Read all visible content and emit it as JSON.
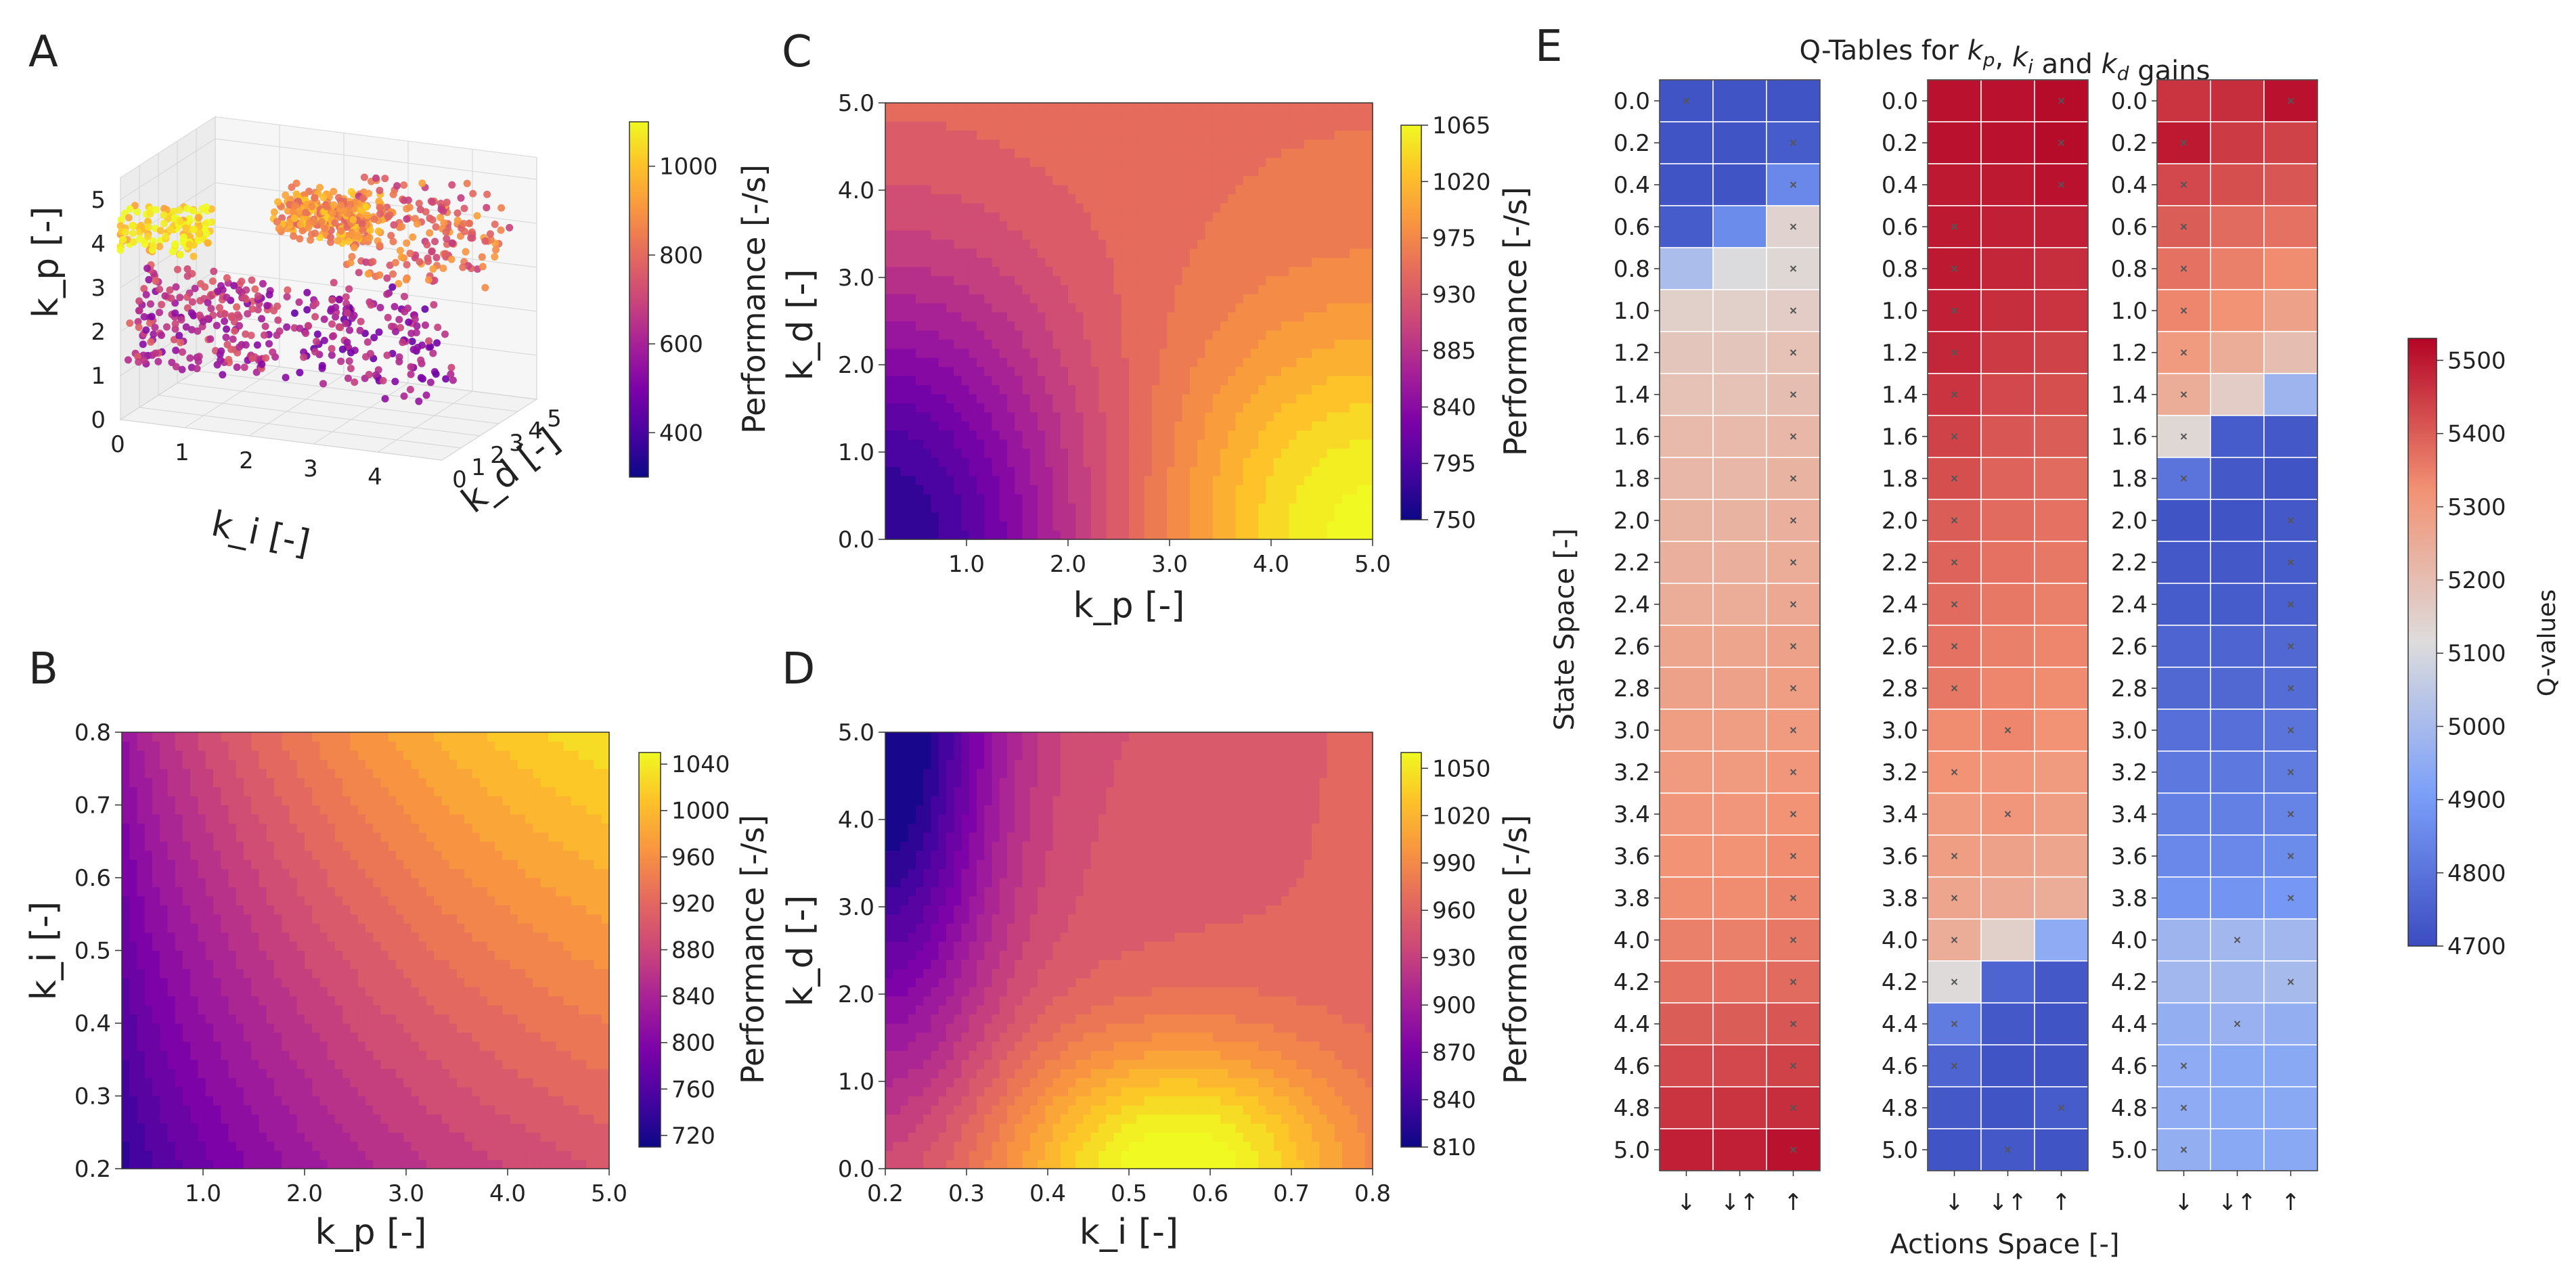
{
  "figure": {
    "panels": [
      "A",
      "B",
      "C",
      "D",
      "E"
    ]
  },
  "chart_data": [
    {
      "panel": "A",
      "type": "scatter",
      "projection": "3d",
      "title": "",
      "xlabel": "k_i [-]",
      "ylabel": "k_d [-]",
      "zlabel": "k_p [-]",
      "x_ticks": [
        "0",
        "1",
        "2",
        "3",
        "4"
      ],
      "y_ticks": [
        "0",
        "1",
        "2",
        "3",
        "4",
        "5"
      ],
      "z_ticks": [
        "0",
        "1",
        "2",
        "3",
        "4",
        "5"
      ],
      "xlim": [
        0,
        5
      ],
      "ylim": [
        0,
        5
      ],
      "zlim": [
        0,
        5.5
      ],
      "colorbar": {
        "label": "Performance [-/s]",
        "ticks": [
          "400",
          "600",
          "800",
          "1000"
        ],
        "range": [
          300,
          1100
        ],
        "colormap": "plasma"
      },
      "clusters": [
        {
          "x": 0.5,
          "y": 0.5,
          "z": 4.3,
          "performance": 1050,
          "count": 140
        },
        {
          "x": 1.2,
          "y": 0.4,
          "z": 2.3,
          "performance": 650,
          "count": 220
        },
        {
          "x": 3.4,
          "y": 1.6,
          "z": 2.0,
          "performance": 580,
          "count": 160
        },
        {
          "x": 2.5,
          "y": 2.5,
          "z": 4.4,
          "performance": 900,
          "count": 280
        },
        {
          "x": 3.7,
          "y": 3.4,
          "z": 4.0,
          "performance": 800,
          "count": 180
        }
      ]
    },
    {
      "panel": "B",
      "type": "heatmap",
      "style": "filled-contour",
      "xlabel": "k_p [-]",
      "ylabel": "k_i [-]",
      "xlim": [
        0.2,
        5.0
      ],
      "ylim": [
        0.2,
        0.8
      ],
      "x_ticks": [
        "1.0",
        "2.0",
        "3.0",
        "4.0",
        "5.0"
      ],
      "y_ticks": [
        "0.2",
        "0.3",
        "0.4",
        "0.5",
        "0.6",
        "0.7",
        "0.8"
      ],
      "colorbar": {
        "label": "Performance [-/s]",
        "ticks": [
          "720",
          "760",
          "800",
          "840",
          "880",
          "920",
          "960",
          "1000",
          "1040"
        ],
        "range": [
          710,
          1050
        ],
        "colormap": "plasma"
      }
    },
    {
      "panel": "C",
      "type": "heatmap",
      "style": "filled-contour",
      "xlabel": "k_p [-]",
      "ylabel": "k_d [-]",
      "xlim": [
        0.2,
        5.0
      ],
      "ylim": [
        0.0,
        5.0
      ],
      "x_ticks": [
        "1.0",
        "2.0",
        "3.0",
        "4.0",
        "5.0"
      ],
      "y_ticks": [
        "0.0",
        "1.0",
        "2.0",
        "3.0",
        "4.0",
        "5.0"
      ],
      "colorbar": {
        "label": "Performance [-/s]",
        "ticks": [
          "750",
          "795",
          "840",
          "885",
          "930",
          "975",
          "1020",
          "1065"
        ],
        "range": [
          750,
          1065
        ],
        "colormap": "plasma"
      }
    },
    {
      "panel": "D",
      "type": "heatmap",
      "style": "filled-contour",
      "xlabel": "k_i [-]",
      "ylabel": "k_d [-]",
      "xlim": [
        0.2,
        0.8
      ],
      "ylim": [
        0.0,
        5.0
      ],
      "x_ticks": [
        "0.2",
        "0.3",
        "0.4",
        "0.5",
        "0.6",
        "0.7",
        "0.8"
      ],
      "y_ticks": [
        "0.0",
        "1.0",
        "2.0",
        "3.0",
        "4.0",
        "5.0"
      ],
      "colorbar": {
        "label": "Performance [-/s]",
        "ticks": [
          "810",
          "840",
          "870",
          "900",
          "930",
          "960",
          "990",
          "1020",
          "1050"
        ],
        "range": [
          810,
          1060
        ],
        "colormap": "plasma"
      }
    },
    {
      "panel": "E",
      "type": "heatmap",
      "title": "Q-Tables for k_p, k_i and k_d gains",
      "xlabel": "Actions Space [-]",
      "ylabel": "State Space [-]",
      "states": [
        "0.0",
        "0.2",
        "0.4",
        "0.6",
        "0.8",
        "1.0",
        "1.2",
        "1.4",
        "1.6",
        "1.8",
        "2.0",
        "2.2",
        "2.4",
        "2.6",
        "2.8",
        "3.0",
        "3.2",
        "3.4",
        "3.6",
        "3.8",
        "4.0",
        "4.2",
        "4.4",
        "4.6",
        "4.8",
        "5.0"
      ],
      "actions": [
        "↓",
        "↓↑",
        "↑"
      ],
      "colorbar": {
        "label": "Q-values",
        "ticks": [
          "4700",
          "4800",
          "4900",
          "5000",
          "5100",
          "5200",
          "5300",
          "5400",
          "5500"
        ],
        "range": [
          4700,
          5530
        ],
        "colormap": "coolwarm"
      },
      "tables": [
        {
          "gain": "k_p",
          "best_action": [
            0,
            2,
            2,
            2,
            2,
            2,
            2,
            2,
            2,
            2,
            2,
            2,
            2,
            2,
            2,
            2,
            2,
            2,
            2,
            2,
            2,
            2,
            2,
            2,
            2,
            2
          ],
          "values": [
            [
              4720,
              4720,
              4720
            ],
            [
              4720,
              4720,
              4740
            ],
            [
              4720,
              4720,
              4850
            ],
            [
              4740,
              4860,
              5140
            ],
            [
              5010,
              5110,
              5130
            ],
            [
              5150,
              5150,
              5160
            ],
            [
              5180,
              5180,
              5190
            ],
            [
              5190,
              5190,
              5200
            ],
            [
              5210,
              5210,
              5220
            ],
            [
              5220,
              5220,
              5230
            ],
            [
              5230,
              5230,
              5240
            ],
            [
              5240,
              5240,
              5250
            ],
            [
              5250,
              5250,
              5260
            ],
            [
              5270,
              5270,
              5280
            ],
            [
              5280,
              5280,
              5290
            ],
            [
              5290,
              5290,
              5300
            ],
            [
              5300,
              5300,
              5310
            ],
            [
              5310,
              5310,
              5320
            ],
            [
              5320,
              5320,
              5330
            ],
            [
              5330,
              5330,
              5340
            ],
            [
              5350,
              5350,
              5360
            ],
            [
              5370,
              5370,
              5380
            ],
            [
              5400,
              5400,
              5410
            ],
            [
              5430,
              5430,
              5440
            ],
            [
              5460,
              5460,
              5470
            ],
            [
              5490,
              5490,
              5510
            ]
          ]
        },
        {
          "gain": "k_i",
          "best_action": [
            2,
            2,
            2,
            0,
            0,
            0,
            0,
            0,
            0,
            0,
            0,
            0,
            0,
            0,
            0,
            1,
            0,
            1,
            0,
            0,
            0,
            0,
            0,
            0,
            2,
            1
          ],
          "values": [
            [
              5510,
              5510,
              5520
            ],
            [
              5510,
              5510,
              5520
            ],
            [
              5500,
              5500,
              5510
            ],
            [
              5500,
              5490,
              5490
            ],
            [
              5500,
              5480,
              5470
            ],
            [
              5490,
              5470,
              5460
            ],
            [
              5480,
              5450,
              5440
            ],
            [
              5460,
              5430,
              5420
            ],
            [
              5440,
              5410,
              5400
            ],
            [
              5420,
              5390,
              5380
            ],
            [
              5400,
              5380,
              5370
            ],
            [
              5390,
              5370,
              5360
            ],
            [
              5380,
              5360,
              5350
            ],
            [
              5370,
              5350,
              5340
            ],
            [
              5360,
              5340,
              5330
            ],
            [
              5330,
              5340,
              5320
            ],
            [
              5320,
              5310,
              5300
            ],
            [
              5300,
              5310,
              5290
            ],
            [
              5290,
              5280,
              5270
            ],
            [
              5270,
              5260,
              5250
            ],
            [
              5250,
              5150,
              4950
            ],
            [
              5120,
              4760,
              4730
            ],
            [
              4820,
              4730,
              4720
            ],
            [
              4760,
              4720,
              4720
            ],
            [
              4730,
              4720,
              4740
            ],
            [
              4720,
              4730,
              4720
            ]
          ]
        },
        {
          "gain": "k_d",
          "best_action": [
            2,
            0,
            0,
            0,
            0,
            0,
            0,
            0,
            0,
            0,
            2,
            2,
            2,
            2,
            2,
            2,
            2,
            2,
            2,
            2,
            1,
            2,
            1,
            0,
            0,
            0
          ],
          "values": [
            [
              5460,
              5470,
              5510
            ],
            [
              5500,
              5450,
              5440
            ],
            [
              5430,
              5420,
              5410
            ],
            [
              5400,
              5380,
              5370
            ],
            [
              5370,
              5350,
              5330
            ],
            [
              5340,
              5320,
              5280
            ],
            [
              5300,
              5250,
              5200
            ],
            [
              5250,
              5160,
              4980
            ],
            [
              5130,
              4740,
              4730
            ],
            [
              4800,
              4730,
              4720
            ],
            [
              4720,
              4720,
              4730
            ],
            [
              4730,
              4730,
              4740
            ],
            [
              4740,
              4740,
              4750
            ],
            [
              4760,
              4760,
              4770
            ],
            [
              4770,
              4770,
              4780
            ],
            [
              4790,
              4790,
              4800
            ],
            [
              4810,
              4810,
              4820
            ],
            [
              4830,
              4830,
              4840
            ],
            [
              4850,
              4850,
              4860
            ],
            [
              4880,
              4880,
              4890
            ],
            [
              4980,
              4990,
              4990
            ],
            [
              4990,
              4990,
              5000
            ],
            [
              4960,
              4970,
              4960
            ],
            [
              4950,
              4940,
              4940
            ],
            [
              4950,
              4940,
              4940
            ],
            [
              4960,
              4940,
              4940
            ]
          ]
        }
      ]
    }
  ]
}
